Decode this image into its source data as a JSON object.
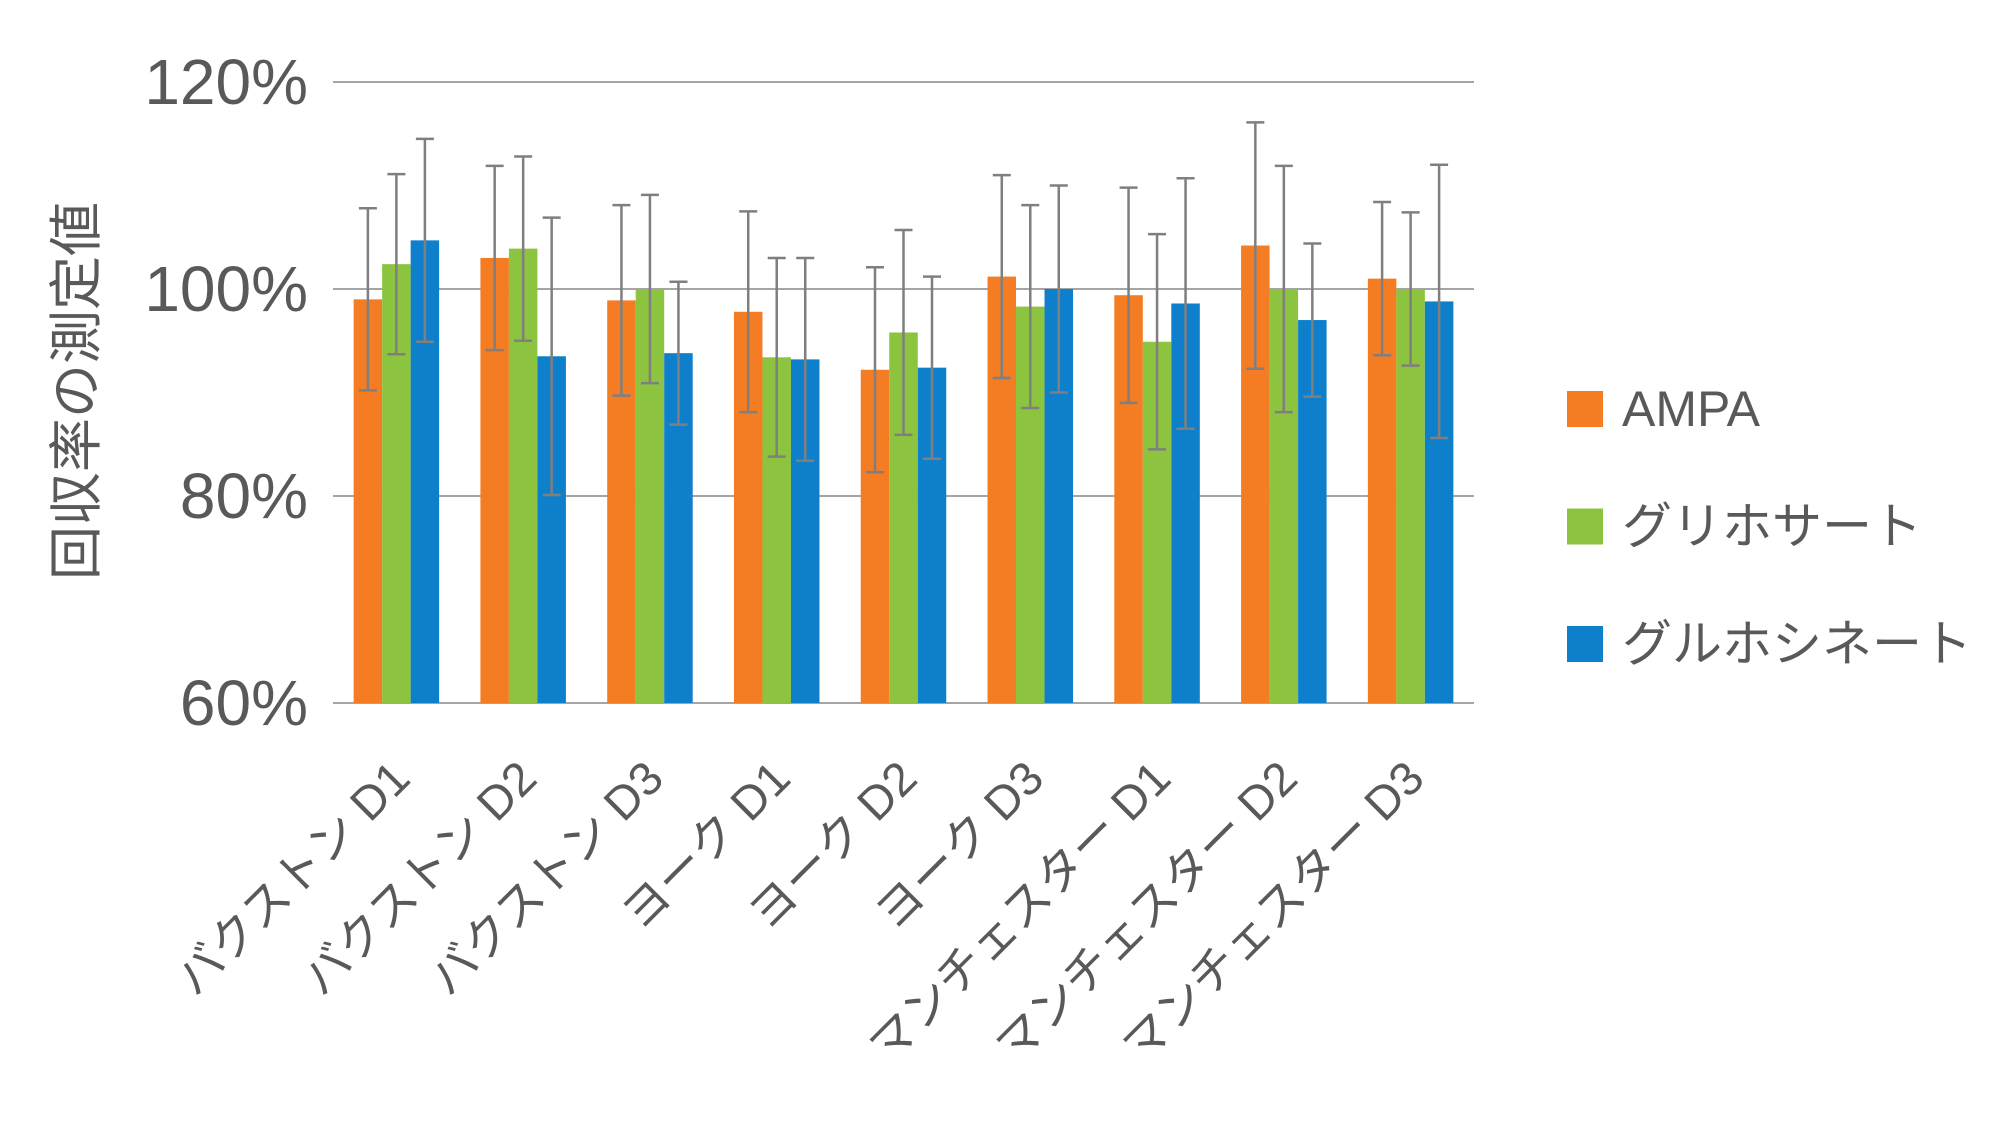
{
  "chart_data": {
    "type": "bar",
    "ylabel": "回収率の測定値",
    "ylim": [
      60,
      120
    ],
    "yticks": [
      60,
      80,
      100,
      120
    ],
    "ytick_labels": [
      "60%",
      "80%",
      "100%",
      "120%"
    ],
    "grid": true,
    "error_bars": true,
    "legend_position": "right",
    "categories": [
      "バクストン D1",
      "バクストン D2",
      "バクストン D3",
      "ヨーク D1",
      "ヨーク D2",
      "ヨーク D3",
      "マンチェスター D1",
      "マンチェスター D2",
      "マンチェスター D3"
    ],
    "series": [
      {
        "name": "AMPA",
        "color": "#F47C22",
        "values": [
          99.0,
          103.0,
          98.9,
          97.8,
          92.2,
          101.2,
          99.4,
          104.2,
          101.0
        ],
        "errors": [
          8.8,
          8.9,
          9.2,
          9.7,
          9.9,
          9.8,
          10.4,
          11.9,
          7.4
        ]
      },
      {
        "name": "グリホサート",
        "color": "#8CC43F",
        "values": [
          102.4,
          103.9,
          100.0,
          93.4,
          95.8,
          98.3,
          94.9,
          100.0,
          100.0
        ],
        "errors": [
          8.7,
          8.9,
          9.1,
          9.6,
          9.9,
          9.8,
          10.4,
          11.9,
          7.4
        ]
      },
      {
        "name": "グルホシネート",
        "color": "#0E80CB",
        "values": [
          104.7,
          93.5,
          93.8,
          93.2,
          92.4,
          100.0,
          98.6,
          97.0,
          98.8
        ],
        "errors": [
          9.8,
          13.4,
          6.9,
          9.8,
          8.8,
          10.0,
          12.1,
          7.4,
          13.2
        ]
      }
    ]
  },
  "colors": {
    "text": "#595959",
    "grid": "#A5A5A5",
    "error_bar": "#7F7F7F",
    "background": "#FFFFFF"
  }
}
